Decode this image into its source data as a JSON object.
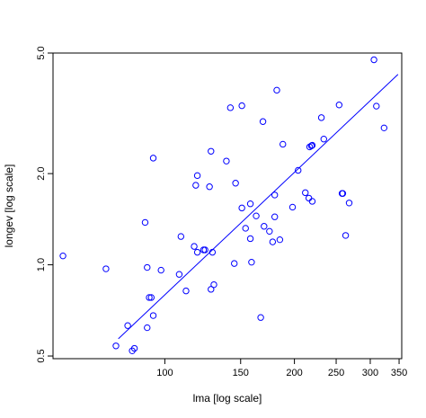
{
  "chart_data": {
    "type": "scatter",
    "title": "",
    "xlabel": "lma [log scale]",
    "ylabel": "longev [log scale]",
    "x_scale": "log",
    "y_scale": "log",
    "xlim": [
      55,
      355
    ],
    "ylim": [
      0.49,
      5.0
    ],
    "x_ticks": [
      {
        "value": 100,
        "label": "100"
      },
      {
        "value": 150,
        "label": "150"
      },
      {
        "value": 200,
        "label": "200"
      },
      {
        "value": 250,
        "label": "250"
      },
      {
        "value": 300,
        "label": "300"
      },
      {
        "value": 350,
        "label": "350"
      }
    ],
    "y_ticks": [
      {
        "value": 0.5,
        "label": "0.5"
      },
      {
        "value": 1.0,
        "label": "1.0"
      },
      {
        "value": 2.0,
        "label": "2.0"
      },
      {
        "value": 5.0,
        "label": "5.0"
      }
    ],
    "grid": false,
    "point_color": "#0000ff",
    "line_color": "#0000ff",
    "points": [
      {
        "x": 58,
        "y": 1.07
      },
      {
        "x": 73,
        "y": 0.97
      },
      {
        "x": 77,
        "y": 0.54
      },
      {
        "x": 82,
        "y": 0.63
      },
      {
        "x": 84,
        "y": 0.52
      },
      {
        "x": 85,
        "y": 0.53
      },
      {
        "x": 90,
        "y": 1.38
      },
      {
        "x": 91,
        "y": 0.62
      },
      {
        "x": 91,
        "y": 0.98
      },
      {
        "x": 92,
        "y": 0.78
      },
      {
        "x": 93,
        "y": 0.78
      },
      {
        "x": 94,
        "y": 0.68
      },
      {
        "x": 94,
        "y": 2.25
      },
      {
        "x": 98,
        "y": 0.96
      },
      {
        "x": 108,
        "y": 0.93
      },
      {
        "x": 109,
        "y": 1.24
      },
      {
        "x": 112,
        "y": 0.82
      },
      {
        "x": 117,
        "y": 1.15
      },
      {
        "x": 118,
        "y": 1.83
      },
      {
        "x": 119,
        "y": 1.97
      },
      {
        "x": 119,
        "y": 1.1
      },
      {
        "x": 123,
        "y": 1.12
      },
      {
        "x": 124,
        "y": 1.12
      },
      {
        "x": 127,
        "y": 1.81
      },
      {
        "x": 128,
        "y": 2.37
      },
      {
        "x": 128,
        "y": 0.83
      },
      {
        "x": 129,
        "y": 1.1
      },
      {
        "x": 130,
        "y": 0.86
      },
      {
        "x": 139,
        "y": 2.2
      },
      {
        "x": 142,
        "y": 3.3
      },
      {
        "x": 145,
        "y": 1.01
      },
      {
        "x": 146,
        "y": 1.86
      },
      {
        "x": 151,
        "y": 3.35
      },
      {
        "x": 151,
        "y": 1.54
      },
      {
        "x": 154,
        "y": 1.32
      },
      {
        "x": 158,
        "y": 1.59
      },
      {
        "x": 158,
        "y": 1.22
      },
      {
        "x": 159,
        "y": 1.02
      },
      {
        "x": 163,
        "y": 1.45
      },
      {
        "x": 167,
        "y": 0.67
      },
      {
        "x": 170,
        "y": 1.34
      },
      {
        "x": 169,
        "y": 2.97
      },
      {
        "x": 175,
        "y": 1.29
      },
      {
        "x": 178,
        "y": 1.19
      },
      {
        "x": 180,
        "y": 1.44
      },
      {
        "x": 180,
        "y": 1.7
      },
      {
        "x": 182,
        "y": 3.77
      },
      {
        "x": 185,
        "y": 1.21
      },
      {
        "x": 188,
        "y": 2.5
      },
      {
        "x": 198,
        "y": 1.55
      },
      {
        "x": 204,
        "y": 2.05
      },
      {
        "x": 212,
        "y": 1.73
      },
      {
        "x": 216,
        "y": 1.66
      },
      {
        "x": 217,
        "y": 2.45
      },
      {
        "x": 219,
        "y": 2.47
      },
      {
        "x": 220,
        "y": 1.62
      },
      {
        "x": 220,
        "y": 2.48
      },
      {
        "x": 231,
        "y": 3.06
      },
      {
        "x": 234,
        "y": 2.6
      },
      {
        "x": 254,
        "y": 3.37
      },
      {
        "x": 258,
        "y": 1.72
      },
      {
        "x": 259,
        "y": 1.72
      },
      {
        "x": 263,
        "y": 1.25
      },
      {
        "x": 268,
        "y": 1.6
      },
      {
        "x": 306,
        "y": 4.75
      },
      {
        "x": 310,
        "y": 3.34
      },
      {
        "x": 323,
        "y": 2.83
      }
    ],
    "fit_line": {
      "x_start": 78,
      "y_start": 0.57,
      "x_end": 348,
      "y_end": 4.25
    }
  }
}
